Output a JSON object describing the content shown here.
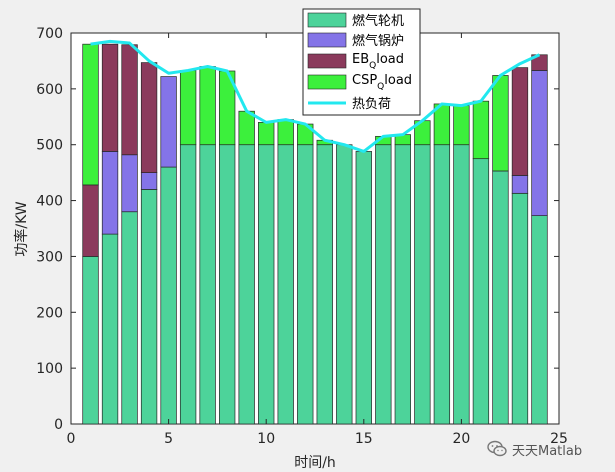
{
  "chart_data": {
    "type": "bar",
    "stacked": true,
    "xlabel": "时间/h",
    "ylabel": "功率/KW",
    "xlim": [
      0,
      25
    ],
    "ylim": [
      0,
      700
    ],
    "xticks": [
      0,
      5,
      10,
      15,
      20,
      25
    ],
    "yticks": [
      0,
      100,
      200,
      300,
      400,
      500,
      600,
      700
    ],
    "grid": false,
    "legend_position": "top-center",
    "categories": [
      1,
      2,
      3,
      4,
      5,
      6,
      7,
      8,
      9,
      10,
      11,
      12,
      13,
      14,
      15,
      16,
      17,
      18,
      19,
      20,
      21,
      22,
      23,
      24
    ],
    "series": [
      {
        "name": "燃气轮机",
        "color": "#4dd39a",
        "values": [
          300,
          340,
          380,
          420,
          460,
          500,
          500,
          500,
          500,
          500,
          500,
          500,
          500,
          500,
          488,
          500,
          500,
          500,
          500,
          500,
          475,
          453,
          413,
          373
        ]
      },
      {
        "name": "燃气锅炉",
        "color": "#8474e8",
        "values": [
          0,
          148,
          102,
          30,
          162,
          0,
          0,
          0,
          0,
          0,
          0,
          0,
          0,
          0,
          0,
          0,
          0,
          0,
          0,
          0,
          0,
          0,
          32,
          260
        ]
      },
      {
        "name": "EB",
        "name_sub": "Q",
        "name_suffix": "load",
        "color": "#8b3a5c",
        "values": [
          128,
          192,
          197,
          197,
          0,
          0,
          0,
          0,
          0,
          0,
          0,
          0,
          0,
          0,
          0,
          0,
          0,
          0,
          0,
          0,
          0,
          0,
          193,
          28
        ]
      },
      {
        "name": "CSP",
        "name_sub": "Q",
        "name_suffix": "load",
        "color": "#3cf03c",
        "values": [
          252,
          0,
          0,
          0,
          0,
          133,
          140,
          132,
          60,
          40,
          45,
          37,
          8,
          0,
          0,
          15,
          18,
          43,
          73,
          70,
          103,
          171,
          0,
          0
        ]
      }
    ],
    "line": {
      "name": "热负荷",
      "color": "#22e8ef",
      "values": [
        680,
        685,
        682,
        650,
        628,
        633,
        640,
        632,
        560,
        540,
        545,
        537,
        508,
        500,
        488,
        515,
        518,
        543,
        573,
        570,
        578,
        624,
        645,
        661
      ]
    }
  },
  "watermark": {
    "text": "天天Matlab"
  }
}
